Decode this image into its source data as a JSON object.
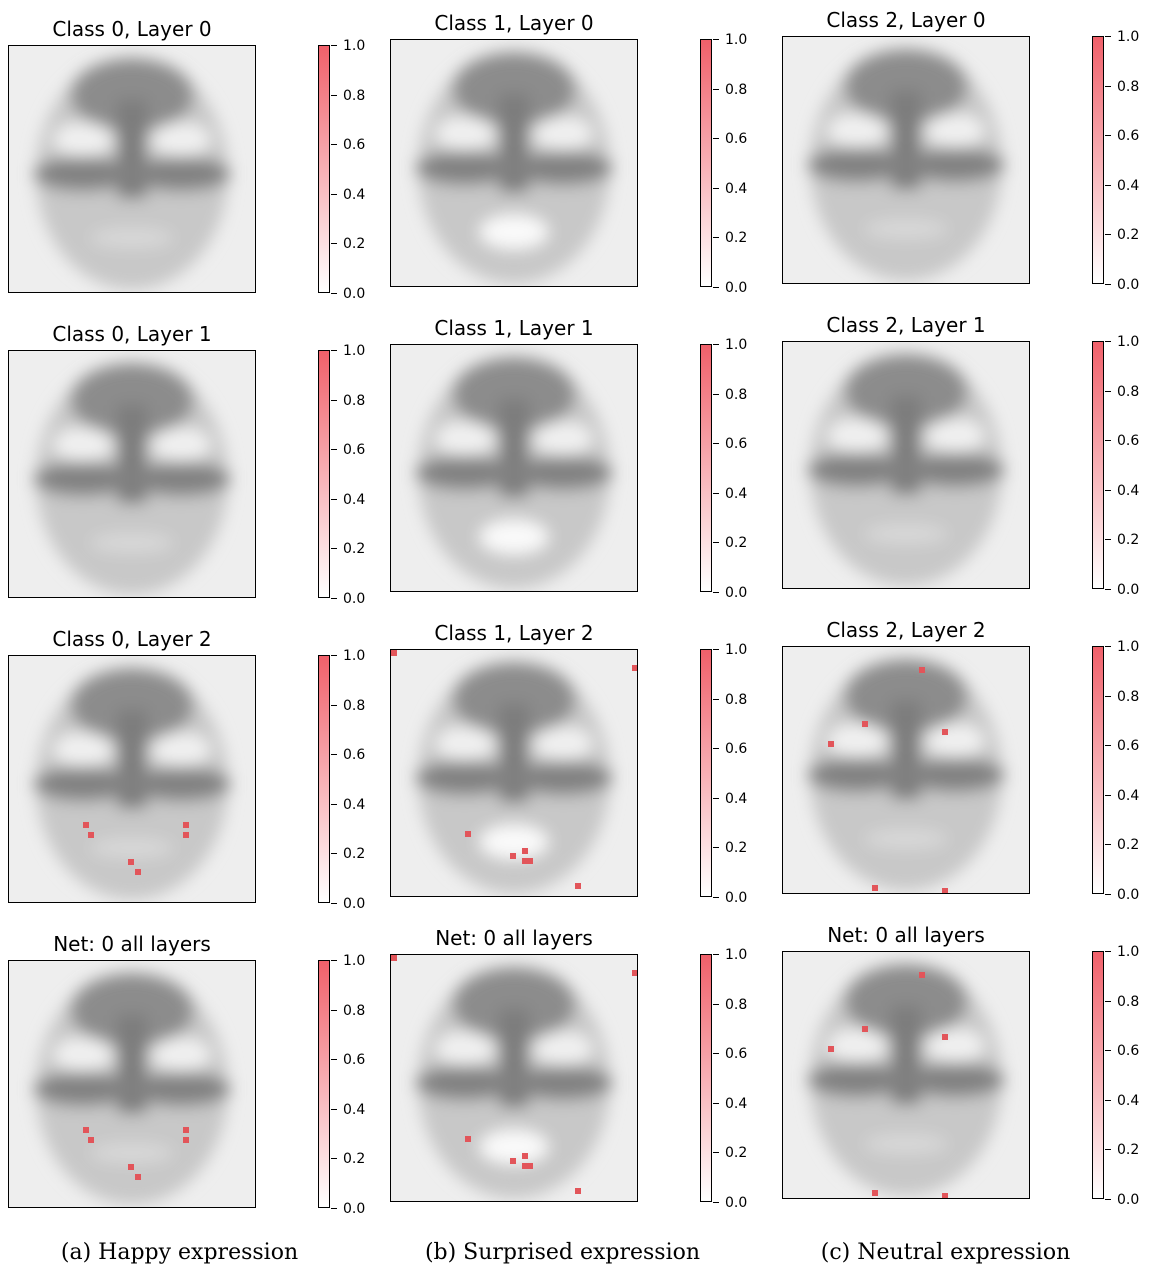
{
  "chart_data": [
    {
      "caption": "(a) Happy expression",
      "panels": [
        {
          "title": "Class 0, Layer 0",
          "highlights": []
        },
        {
          "title": "Class 0, Layer 1",
          "highlights": []
        },
        {
          "title": "Class 0, Layer 2",
          "highlights": [
            [
              0.3,
              0.67
            ],
            [
              0.32,
              0.71
            ],
            [
              0.7,
              0.67
            ],
            [
              0.7,
              0.71
            ],
            [
              0.48,
              0.82
            ],
            [
              0.51,
              0.86
            ]
          ]
        },
        {
          "title": "Net: 0 all layers",
          "highlights": [
            [
              0.3,
              0.67
            ],
            [
              0.32,
              0.71
            ],
            [
              0.7,
              0.67
            ],
            [
              0.7,
              0.71
            ],
            [
              0.48,
              0.82
            ],
            [
              0.51,
              0.86
            ]
          ]
        }
      ]
    },
    {
      "caption": "(b) Surprised expression",
      "panels": [
        {
          "title": "Class 1, Layer 0",
          "highlights": []
        },
        {
          "title": "Class 1, Layer 1",
          "highlights": []
        },
        {
          "title": "Class 1, Layer 2",
          "highlights": [
            [
              0.0,
              0.0
            ],
            [
              0.99,
              0.06
            ],
            [
              0.3,
              0.73
            ],
            [
              0.48,
              0.82
            ],
            [
              0.53,
              0.8
            ],
            [
              0.53,
              0.84
            ],
            [
              0.55,
              0.84
            ],
            [
              0.74,
              0.94
            ]
          ]
        },
        {
          "title": "Net: 0 all layers",
          "highlights": [
            [
              0.0,
              0.0
            ],
            [
              0.99,
              0.06
            ],
            [
              0.3,
              0.73
            ],
            [
              0.48,
              0.82
            ],
            [
              0.53,
              0.8
            ],
            [
              0.53,
              0.84
            ],
            [
              0.55,
              0.84
            ],
            [
              0.74,
              0.94
            ]
          ]
        }
      ]
    },
    {
      "caption": "(c) Neutral expression",
      "panels": [
        {
          "title": "Class 2, Layer 0",
          "highlights": []
        },
        {
          "title": "Class 2, Layer 1",
          "highlights": []
        },
        {
          "title": "Class 2, Layer 2",
          "highlights": [
            [
              0.55,
              0.08
            ],
            [
              0.32,
              0.3
            ],
            [
              0.18,
              0.38
            ],
            [
              0.64,
              0.33
            ],
            [
              0.36,
              0.96
            ],
            [
              0.64,
              0.98
            ]
          ]
        },
        {
          "title": "Net: 0 all layers",
          "highlights": [
            [
              0.55,
              0.08
            ],
            [
              0.32,
              0.3
            ],
            [
              0.18,
              0.38
            ],
            [
              0.64,
              0.33
            ],
            [
              0.36,
              0.96
            ],
            [
              0.64,
              0.98
            ]
          ]
        }
      ]
    }
  ],
  "colorbar": {
    "ticks": [
      "0.0",
      "0.2",
      "0.4",
      "0.6",
      "0.8",
      "1.0"
    ],
    "color_high": "#f0606a",
    "color_low": "#ffffff"
  },
  "highlight_color": "#e2555a"
}
